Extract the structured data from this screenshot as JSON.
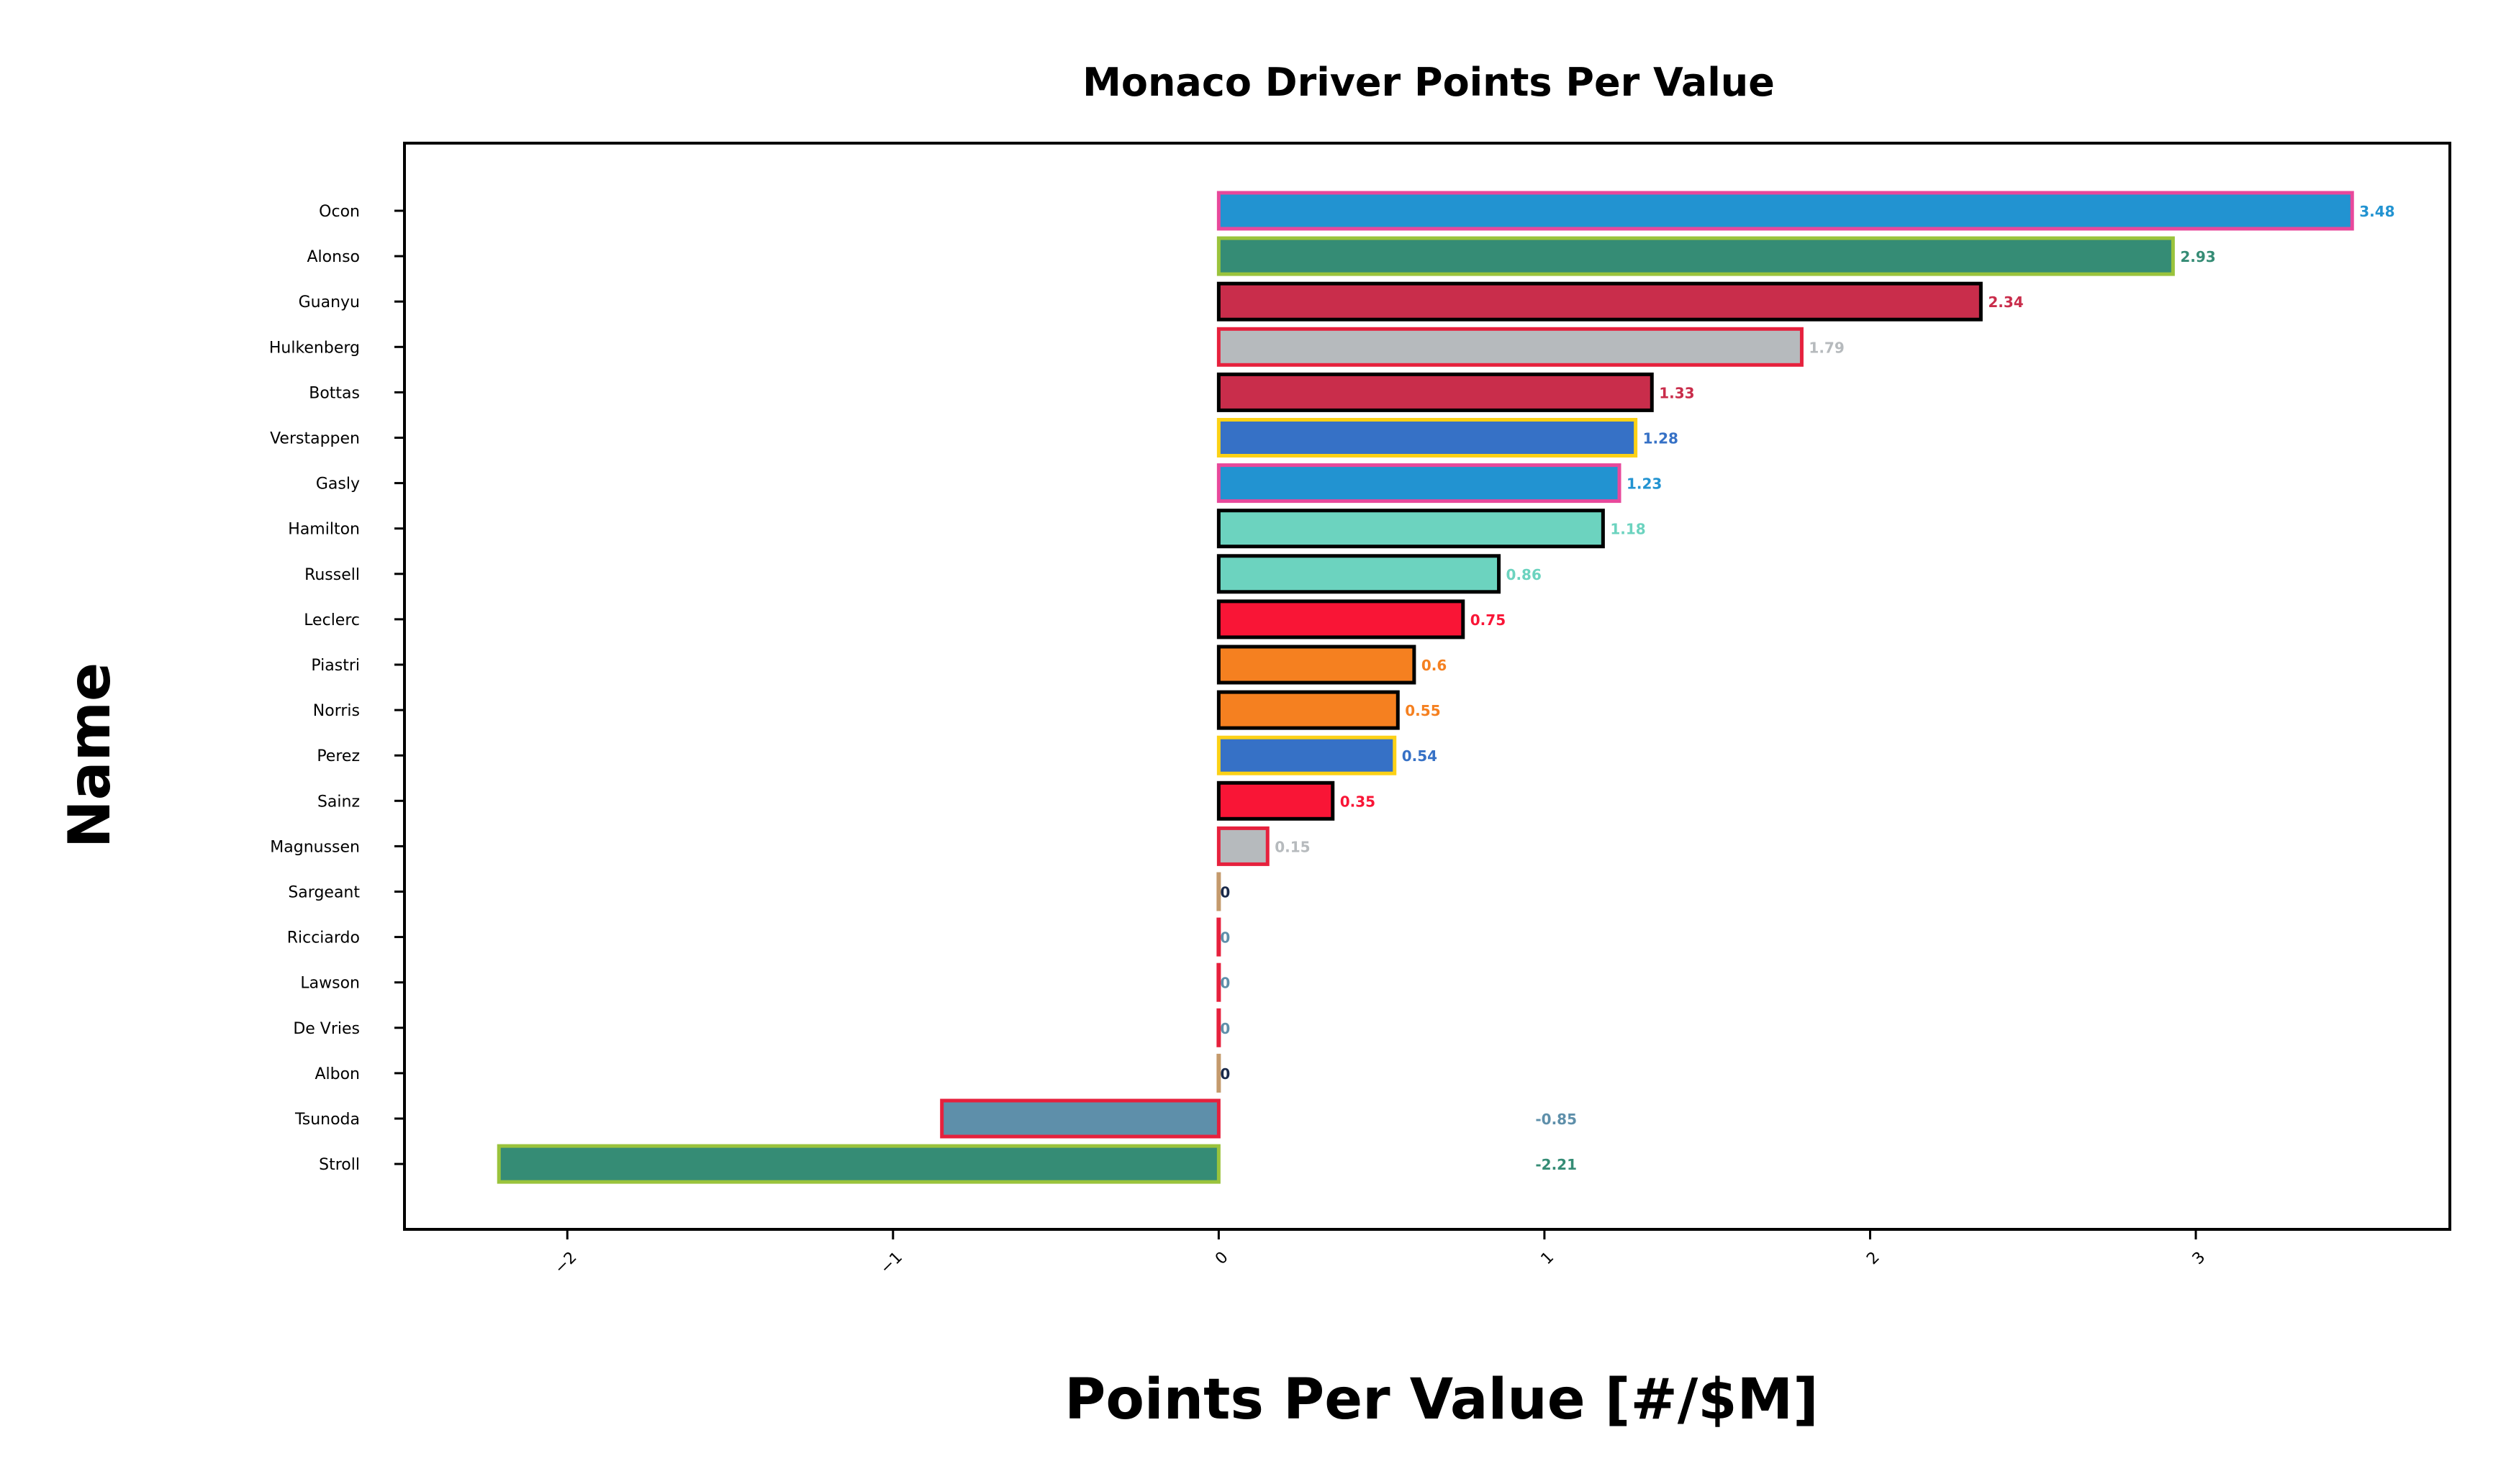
{
  "chart_data": {
    "type": "bar",
    "orientation": "horizontal",
    "title": "Monaco Driver Points Per Value",
    "xlabel": "Points Per Value [#/$M]",
    "ylabel": "Name",
    "xlim": [
      -2.5,
      3.78
    ],
    "xticks": [
      -2,
      -1,
      0,
      1,
      2,
      3
    ],
    "xtick_labels": [
      "−2",
      "−1",
      "0",
      "1",
      "2",
      "3"
    ],
    "grid": false,
    "bars": [
      {
        "name": "Ocon",
        "value": 3.48,
        "label": "3.48",
        "fill": "#2293d1",
        "edge": "#e8489b",
        "label_color": "#2293d1"
      },
      {
        "name": "Alonso",
        "value": 2.93,
        "label": "2.93",
        "fill": "#358c75",
        "edge": "#9ac33c",
        "label_color": "#358c75"
      },
      {
        "name": "Guanyu",
        "value": 2.34,
        "label": "2.34",
        "fill": "#c92d4b",
        "edge": "#000000",
        "label_color": "#c92d4b"
      },
      {
        "name": "Hulkenberg",
        "value": 1.79,
        "label": "1.79",
        "fill": "#b6babd",
        "edge": "#e6213d",
        "label_color": "#b6babd"
      },
      {
        "name": "Bottas",
        "value": 1.33,
        "label": "1.33",
        "fill": "#c92d4b",
        "edge": "#000000",
        "label_color": "#c92d4b"
      },
      {
        "name": "Verstappen",
        "value": 1.28,
        "label": "1.28",
        "fill": "#3671c6",
        "edge": "#fcd116",
        "label_color": "#3671c6"
      },
      {
        "name": "Gasly",
        "value": 1.23,
        "label": "1.23",
        "fill": "#2293d1",
        "edge": "#e8489b",
        "label_color": "#2293d1"
      },
      {
        "name": "Hamilton",
        "value": 1.18,
        "label": "1.18",
        "fill": "#6cd3bf",
        "edge": "#000000",
        "label_color": "#6cd3bf"
      },
      {
        "name": "Russell",
        "value": 0.86,
        "label": "0.86",
        "fill": "#6cd3bf",
        "edge": "#000000",
        "label_color": "#6cd3bf"
      },
      {
        "name": "Leclerc",
        "value": 0.75,
        "label": "0.75",
        "fill": "#f91536",
        "edge": "#000000",
        "label_color": "#f91536"
      },
      {
        "name": "Piastri",
        "value": 0.6,
        "label": "0.6",
        "fill": "#f58020",
        "edge": "#000000",
        "label_color": "#f58020"
      },
      {
        "name": "Norris",
        "value": 0.55,
        "label": "0.55",
        "fill": "#f58020",
        "edge": "#000000",
        "label_color": "#f58020"
      },
      {
        "name": "Perez",
        "value": 0.54,
        "label": "0.54",
        "fill": "#3671c6",
        "edge": "#fcd116",
        "label_color": "#3671c6"
      },
      {
        "name": "Sainz",
        "value": 0.35,
        "label": "0.35",
        "fill": "#f91536",
        "edge": "#000000",
        "label_color": "#f91536"
      },
      {
        "name": "Magnussen",
        "value": 0.15,
        "label": "0.15",
        "fill": "#b6babd",
        "edge": "#e6213d",
        "label_color": "#b6babd"
      },
      {
        "name": "Sargeant",
        "value": 0,
        "label": "0",
        "fill": "#1a2a4a",
        "edge": "#c49a6c",
        "label_color": "#1a2a4a"
      },
      {
        "name": "Ricciardo",
        "value": 0,
        "label": "0",
        "fill": "#5e8faa",
        "edge": "#e6213d",
        "label_color": "#5e8faa"
      },
      {
        "name": "Lawson",
        "value": 0,
        "label": "0",
        "fill": "#5e8faa",
        "edge": "#e6213d",
        "label_color": "#5e8faa"
      },
      {
        "name": "De Vries",
        "value": 0,
        "label": "0",
        "fill": "#5e8faa",
        "edge": "#e6213d",
        "label_color": "#5e8faa"
      },
      {
        "name": "Albon",
        "value": 0,
        "label": "0",
        "fill": "#1a2a4a",
        "edge": "#c49a6c",
        "label_color": "#1a2a4a"
      },
      {
        "name": "Tsunoda",
        "value": -0.85,
        "label": "-0.85",
        "fill": "#5e8faa",
        "edge": "#e6213d",
        "label_color": "#5e8faa"
      },
      {
        "name": "Stroll",
        "value": -2.21,
        "label": "-2.21",
        "fill": "#358c75",
        "edge": "#9ac33c",
        "label_color": "#358c75"
      }
    ]
  }
}
